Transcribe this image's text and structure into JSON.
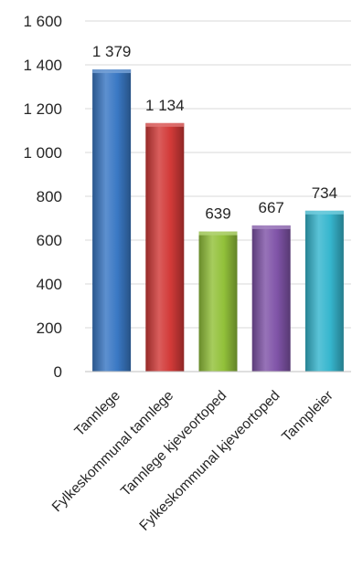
{
  "chart_data": {
    "type": "bar",
    "categories": [
      "Tannlege",
      "Fylkeskommunal tannlege",
      "Tannlege kjeveortoped",
      "Fylkeskommunal kjeveortoped",
      "Tannpleier"
    ],
    "values": [
      1379,
      1134,
      639,
      667,
      734
    ],
    "value_labels": [
      "1 379",
      "1 134",
      "639",
      "667",
      "734"
    ],
    "y_ticks": [
      0,
      200,
      400,
      600,
      800,
      1000,
      1200,
      1400,
      1600
    ],
    "y_tick_labels": [
      "0",
      "200",
      "400",
      "600",
      "800",
      "1 000",
      "1 200",
      "1 400",
      "1 600"
    ],
    "ylim": [
      0,
      1600
    ],
    "grid": true,
    "legend": "none",
    "title": "",
    "xlabel": "",
    "ylabel": "",
    "colors": [
      "#3a78c4",
      "#d23a38",
      "#92c13a",
      "#8054a8",
      "#36b6ce"
    ]
  }
}
